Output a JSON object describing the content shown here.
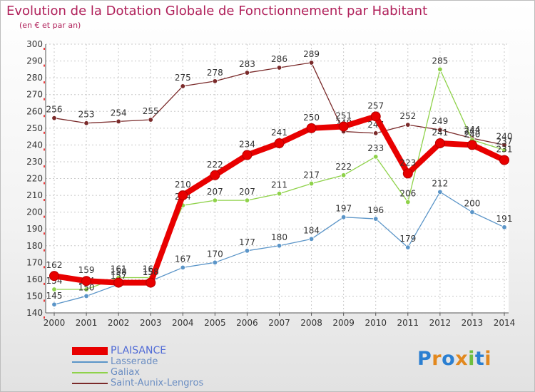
{
  "title": "Evolution de la Dotation Globale de Fonctionnement par Habitant",
  "subtitle": "(en € et par an)",
  "logo": {
    "text": "Proxiti",
    "letters": [
      "P",
      "r",
      "o",
      "x",
      "i",
      "t",
      "i"
    ],
    "colors": [
      "#2b7fd1",
      "#e2881e",
      "#2b7fd1",
      "#e2881e",
      "#6fbf3f",
      "#2b7fd1",
      "#e2881e"
    ]
  },
  "chart_data": {
    "type": "line",
    "title": "Evolution de la Dotation Globale de Fonctionnement par Habitant",
    "subtitle": "(en € et par an)",
    "xlabel": "",
    "ylabel": "",
    "categories": [
      "2000",
      "2001",
      "2002",
      "2003",
      "2004",
      "2005",
      "2006",
      "2007",
      "2008",
      "2009",
      "2010",
      "2011",
      "2012",
      "2013",
      "2014"
    ],
    "ylim": [
      140,
      300
    ],
    "yticks": [
      "140",
      "150",
      "160",
      "170",
      "180",
      "190",
      "200",
      "210",
      "220",
      "230",
      "240",
      "250",
      "260",
      "270",
      "280",
      "290",
      "300"
    ],
    "grid": true,
    "legend_position": "bottom-left",
    "series": [
      {
        "name": "PLAISANCE",
        "color": "#e80000",
        "emphasis": true,
        "values": [
          162,
          159,
          158,
          158,
          210,
          222,
          234,
          241,
          250,
          251,
          257,
          223,
          241,
          240,
          231
        ],
        "labels": [
          "162",
          "159",
          "158",
          "158",
          "210",
          "222",
          "234",
          "241",
          "250",
          "251",
          "257",
          "223",
          "241",
          "240",
          "231"
        ]
      },
      {
        "name": "Lasserade",
        "color": "#5b95c8",
        "emphasis": false,
        "values": [
          145,
          150,
          157,
          159,
          167,
          170,
          177,
          180,
          184,
          197,
          196,
          179,
          212,
          200,
          191
        ],
        "labels": [
          "145",
          "150",
          "157",
          "159",
          "167",
          "170",
          "177",
          "180",
          "184",
          "197",
          "196",
          "179",
          "212",
          "200",
          "191"
        ]
      },
      {
        "name": "Galiax",
        "color": "#8fd24a",
        "emphasis": false,
        "values": [
          154,
          154,
          161,
          161,
          204,
          207,
          207,
          211,
          217,
          222,
          233,
          206,
          285,
          243,
          237
        ],
        "labels": [
          "154",
          "154",
          "161",
          "161",
          "204",
          "207",
          "207",
          "211",
          "217",
          "222",
          "233",
          "206",
          "285",
          "243",
          "237"
        ]
      },
      {
        "name": "Saint-Aunix-Lengros",
        "color": "#7a2a2a",
        "emphasis": false,
        "values": [
          256,
          253,
          254,
          255,
          275,
          278,
          283,
          286,
          289,
          248,
          247,
          252,
          249,
          244,
          240
        ],
        "labels": [
          "256",
          "253",
          "254",
          "255",
          "275",
          "278",
          "283",
          "286",
          "289",
          "248",
          "247",
          "252",
          "249",
          "244",
          "240"
        ]
      }
    ]
  }
}
